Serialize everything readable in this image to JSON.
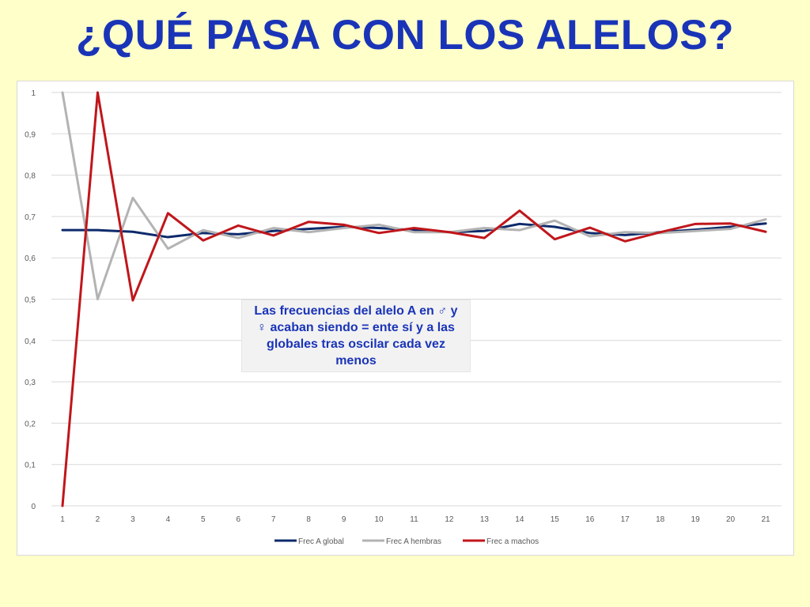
{
  "slide": {
    "title": "¿QUÉ PASA CON LOS ALELOS?",
    "annotation": "Las frecuencias del alelo A en ♂ y ♀ acaban siendo = ente sí y a las globales tras oscilar cada vez menos"
  },
  "chart_data": {
    "type": "line",
    "x": [
      1,
      2,
      3,
      4,
      5,
      6,
      7,
      8,
      9,
      10,
      11,
      12,
      13,
      14,
      15,
      16,
      17,
      18,
      19,
      20,
      21
    ],
    "ylim": [
      0,
      1
    ],
    "yticks": [
      "0",
      "0,1",
      "0,2",
      "0,3",
      "0,4",
      "0,5",
      "0,6",
      "0,7",
      "0,8",
      "0,9",
      "1"
    ],
    "ytick_values": [
      0,
      0.1,
      0.2,
      0.3,
      0.4,
      0.5,
      0.6,
      0.7,
      0.8,
      0.9,
      1
    ],
    "grid": true,
    "legend_position": "bottom",
    "series": [
      {
        "name": "Frec A global",
        "color": "#0d2a6b",
        "values": [
          0.667,
          0.667,
          0.663,
          0.65,
          0.66,
          0.657,
          0.665,
          0.67,
          0.675,
          0.672,
          0.667,
          0.662,
          0.665,
          0.682,
          0.675,
          0.66,
          0.655,
          0.662,
          0.668,
          0.675,
          0.683
        ]
      },
      {
        "name": "Frec A hembras",
        "color": "#b3b3b3",
        "values": [
          1.0,
          0.5,
          0.745,
          0.622,
          0.667,
          0.648,
          0.672,
          0.662,
          0.672,
          0.68,
          0.662,
          0.662,
          0.672,
          0.667,
          0.69,
          0.652,
          0.662,
          0.66,
          0.665,
          0.67,
          0.693
        ]
      },
      {
        "name": "Frec a machos",
        "color": "#c0161b",
        "values": [
          0.0,
          1.0,
          0.497,
          0.708,
          0.642,
          0.678,
          0.654,
          0.687,
          0.68,
          0.66,
          0.672,
          0.662,
          0.648,
          0.714,
          0.645,
          0.673,
          0.64,
          0.662,
          0.682,
          0.683,
          0.663
        ]
      }
    ]
  }
}
